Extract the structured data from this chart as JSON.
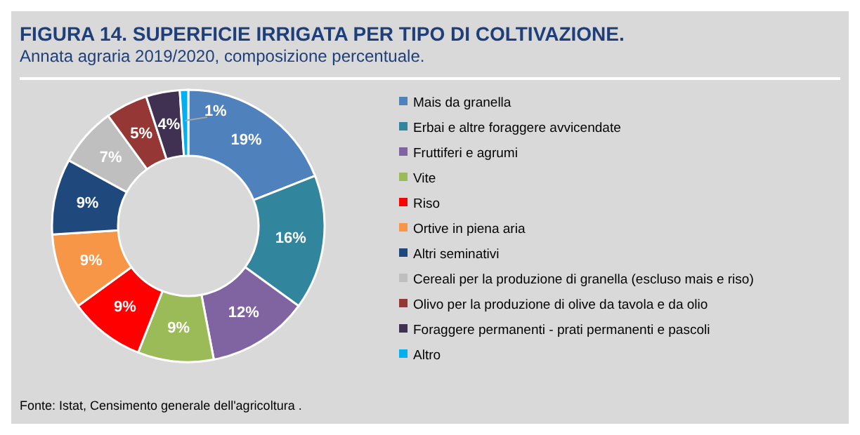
{
  "chart_data": {
    "type": "donut",
    "title": "FIGURA 14. SUPERFICIE IRRIGATA PER TIPO DI COLTIVAZIONE.",
    "subtitle": "Annata agraria 2019/2020, composizione percentuale.",
    "categories": [
      "Mais da granella",
      "Erbai e altre foraggere avvicendate",
      "Fruttiferi e agrumi",
      "Vite",
      "Riso",
      "Ortive in piena aria",
      "Altri seminativi",
      "Cereali per la produzione di granella (escluso mais e riso)",
      "Olivo per la produzione di olive da tavola e da olio",
      "Foraggere permanenti - prati permanenti e pascoli",
      "Altro"
    ],
    "values": [
      19,
      16,
      12,
      9,
      9,
      9,
      9,
      7,
      5,
      4,
      1
    ],
    "colors": [
      "#4f81bd",
      "#31859c",
      "#8064a2",
      "#9bbb59",
      "#ff0000",
      "#f79646",
      "#1f497d",
      "#bfbfbf",
      "#953735",
      "#403152",
      "#00b0f0"
    ],
    "value_labels": [
      "19%",
      "16%",
      "12%",
      "9%",
      "9%",
      "9%",
      "9%",
      "7%",
      "5%",
      "4%",
      "1%"
    ],
    "legend": "right",
    "annotations": [
      "Fonte: Istat, Censimento generale dell'agricoltura ."
    ]
  }
}
